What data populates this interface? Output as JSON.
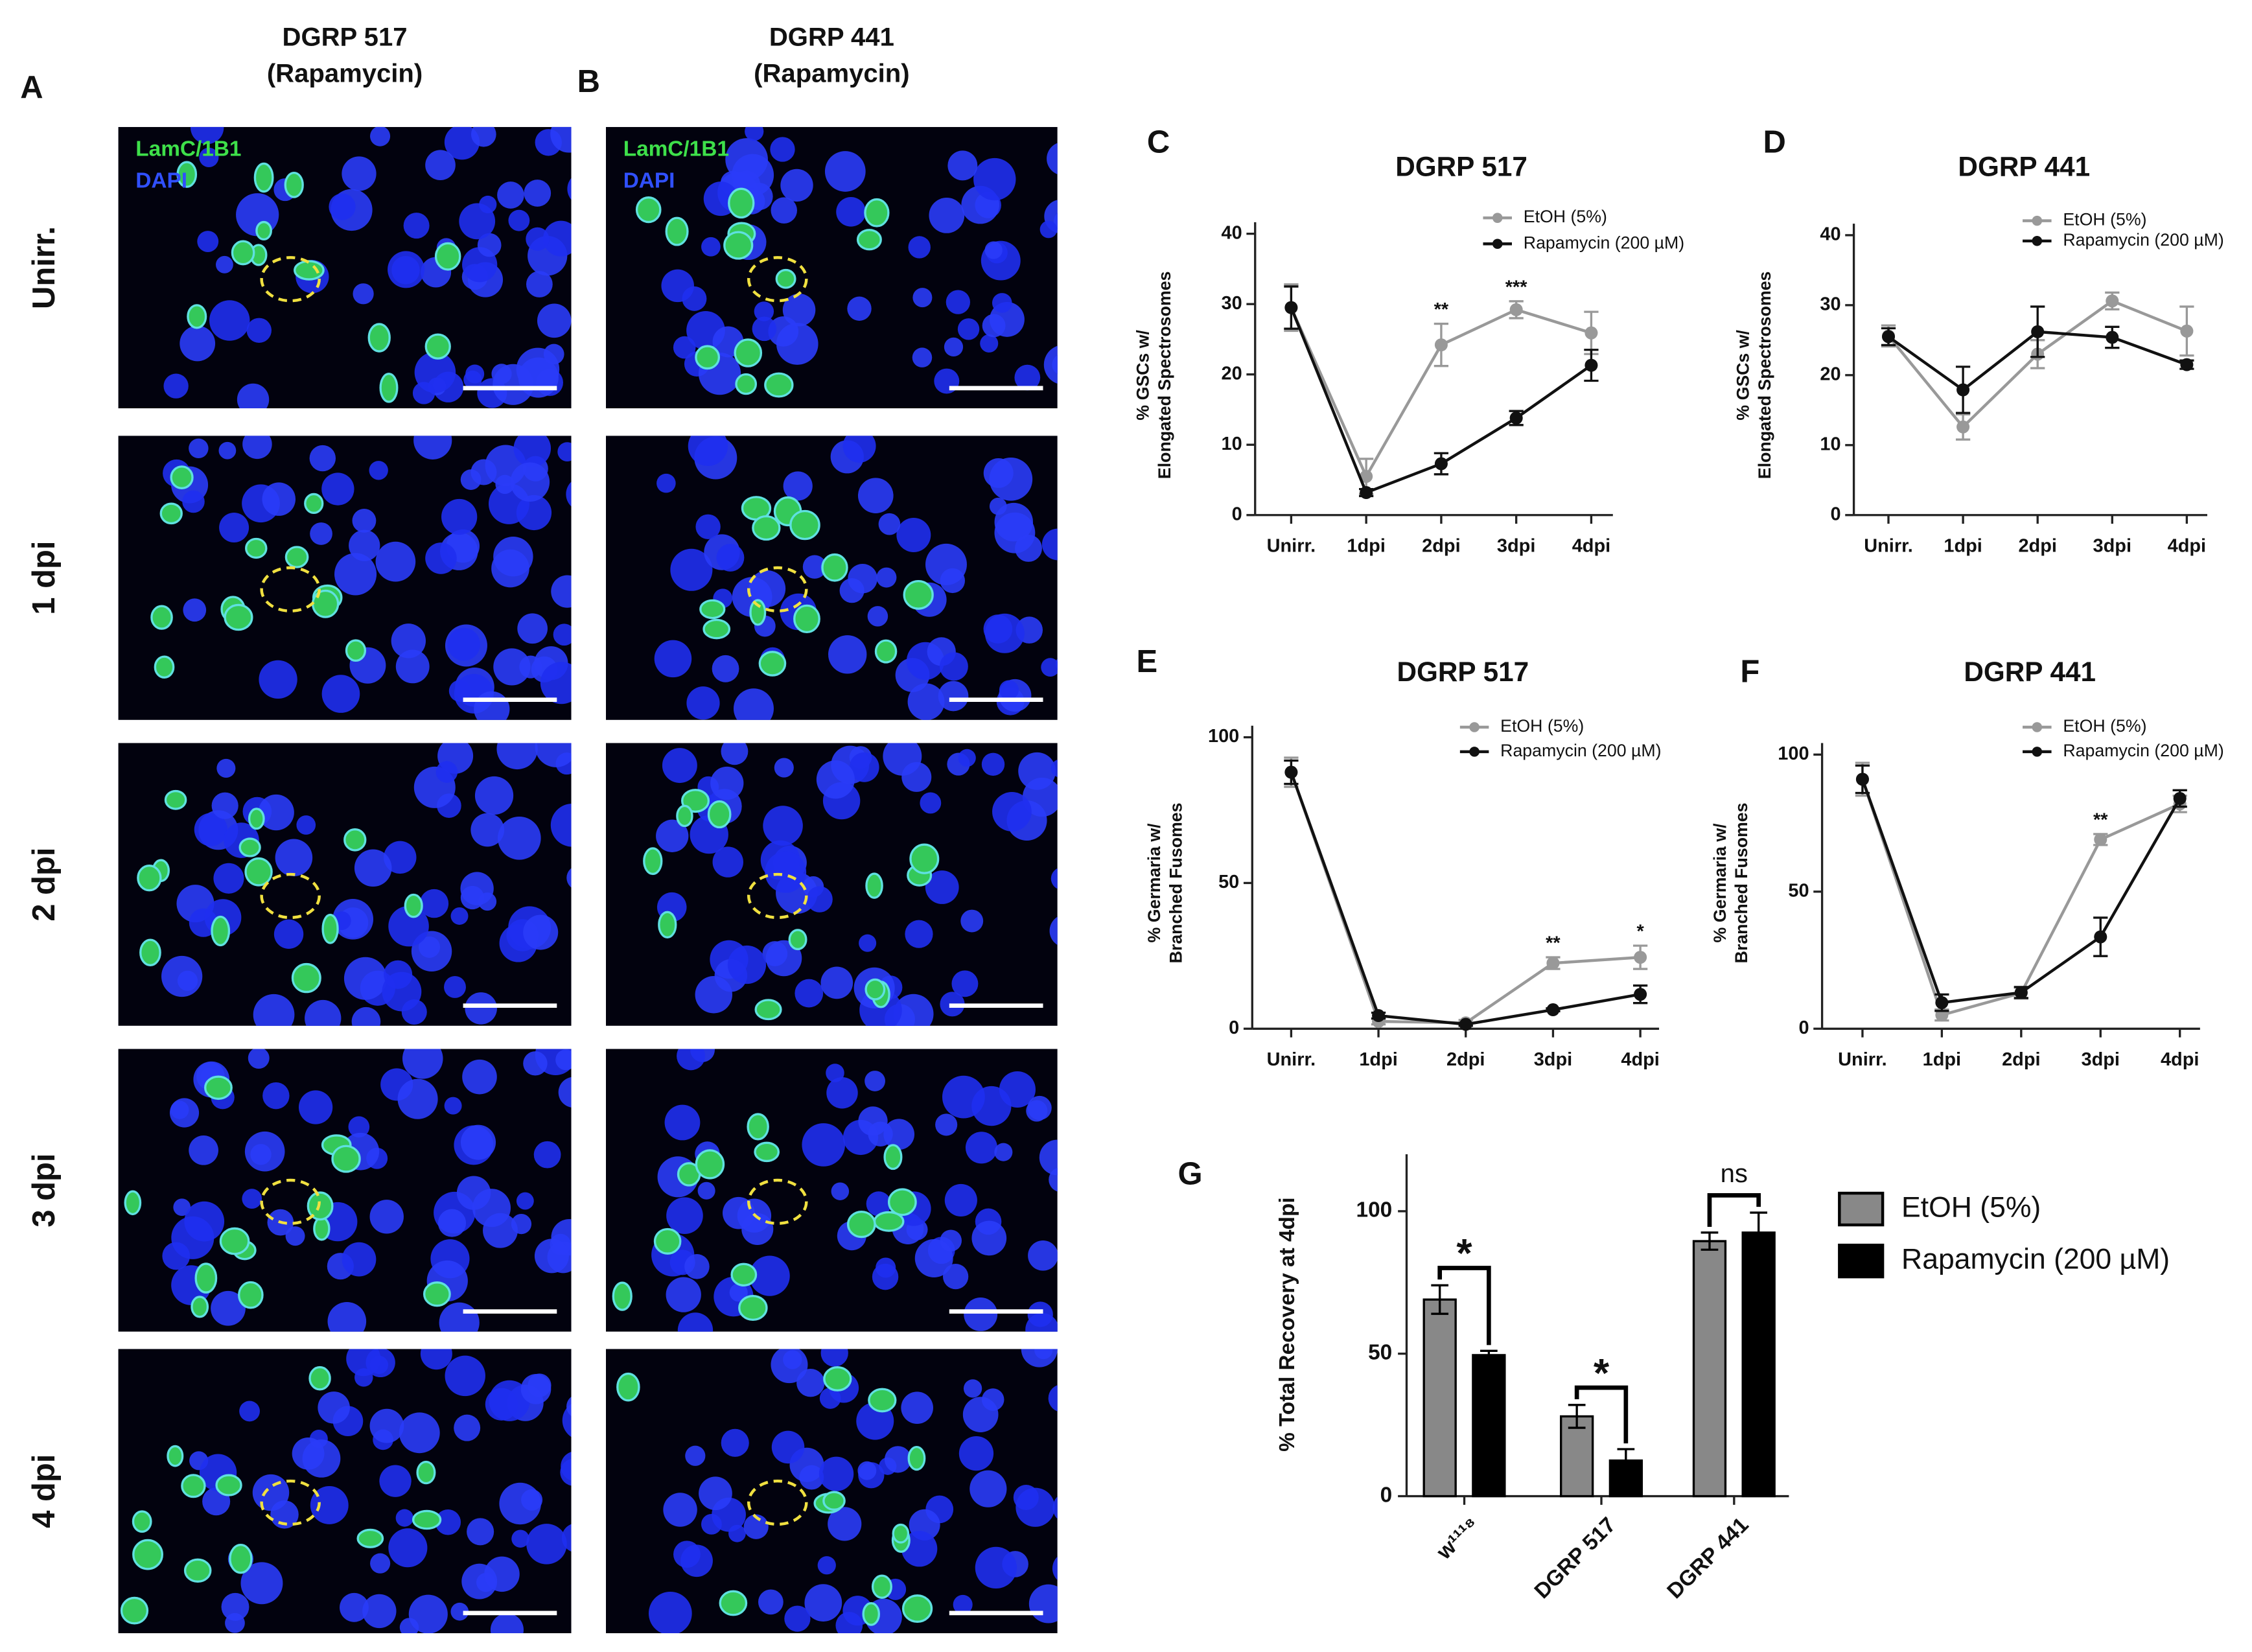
{
  "microscopy": {
    "columns": [
      {
        "label": "A",
        "title": [
          "DGRP 517",
          "(Rapamycin)"
        ]
      },
      {
        "label": "B",
        "title": [
          "DGRP 441",
          "(Rapamycin)"
        ]
      }
    ],
    "rows": [
      "Unirr.",
      "1 dpi",
      "2 dpi",
      "3 dpi",
      "4 dpi"
    ],
    "stains": [
      "LamC/1B1",
      "DAPI"
    ]
  },
  "chart_data": [
    {
      "type": "line",
      "label": "C",
      "title": "DGRP 517",
      "ylabel": [
        "% GSCs w/",
        "Elongated Spectrosomes"
      ],
      "categories": [
        "Unirr.",
        "1dpi",
        "2dpi",
        "3dpi",
        "4dpi"
      ],
      "series": [
        {
          "name": "EtOH (5%)",
          "color": "#999999",
          "values": [
            29.5,
            5.5,
            24.2,
            29.2,
            25.9
          ],
          "errors": [
            3.3,
            2.5,
            3,
            1.2,
            3
          ]
        },
        {
          "name": "Rapamycin (200 µM)",
          "color": "#111111",
          "values": [
            29.5,
            3.2,
            7.3,
            13.8,
            21.3
          ],
          "errors": [
            3,
            0.5,
            1.5,
            1,
            2.2
          ]
        }
      ],
      "significance": [
        null,
        null,
        "**",
        "***",
        null
      ],
      "ylim": [
        0,
        40
      ],
      "yticks": [
        0,
        10,
        20,
        30,
        40
      ]
    },
    {
      "type": "line",
      "label": "D",
      "title": "DGRP 441",
      "ylabel": [
        "% GSCs w/",
        "Elongated Spectrosomes"
      ],
      "categories": [
        "Unirr.",
        "1dpi",
        "2dpi",
        "3dpi",
        "4dpi"
      ],
      "series": [
        {
          "name": "EtOH (5%)",
          "color": "#999999",
          "values": [
            25.6,
            12.6,
            23,
            30.6,
            26.3
          ],
          "errors": [
            1.5,
            1.8,
            2,
            1.2,
            3.5
          ]
        },
        {
          "name": "Rapamycin (200 µM)",
          "color": "#111111",
          "values": [
            25.5,
            17.9,
            26.2,
            25.4,
            21.5
          ],
          "errors": [
            1.2,
            3.3,
            3.6,
            1.5,
            0.6
          ]
        }
      ],
      "significance": [
        null,
        null,
        null,
        null,
        null
      ],
      "ylim": [
        0,
        40
      ],
      "yticks": [
        0,
        10,
        20,
        30,
        40
      ]
    },
    {
      "type": "line",
      "label": "E",
      "title": "DGRP 517",
      "ylabel": [
        "% Germaria w/",
        "Branched Fusomes"
      ],
      "categories": [
        "Unirr.",
        "1dpi",
        "2dpi",
        "3dpi",
        "4dpi"
      ],
      "series": [
        {
          "name": "EtOH (5%)",
          "color": "#999999",
          "values": [
            88,
            2.5,
            2,
            22.5,
            24.5
          ],
          "errors": [
            5,
            1,
            1,
            2,
            4
          ]
        },
        {
          "name": "Rapamycin (200 µM)",
          "color": "#111111",
          "values": [
            88,
            4.5,
            1.5,
            6.5,
            11.8
          ],
          "errors": [
            4,
            1,
            0.5,
            0.5,
            3
          ]
        }
      ],
      "significance": [
        null,
        null,
        null,
        "**",
        "*"
      ],
      "ylim": [
        0,
        100
      ],
      "yticks": [
        0,
        50,
        100
      ]
    },
    {
      "type": "line",
      "label": "F",
      "title": "DGRP 441",
      "ylabel": [
        "% Germaria w/",
        "Branched Fusomes"
      ],
      "categories": [
        "Unirr.",
        "1dpi",
        "2dpi",
        "3dpi",
        "4dpi"
      ],
      "series": [
        {
          "name": "EtOH (5%)",
          "color": "#999999",
          "values": [
            91,
            5,
            13,
            69,
            82
          ],
          "errors": [
            6,
            2,
            2,
            2,
            3
          ]
        },
        {
          "name": "Rapamycin (200 µM)",
          "color": "#111111",
          "values": [
            91,
            9.5,
            13.2,
            33.5,
            84
          ],
          "errors": [
            5,
            3,
            2,
            7,
            3
          ]
        }
      ],
      "significance": [
        null,
        null,
        null,
        "**",
        null
      ],
      "ylim": [
        0,
        100
      ],
      "yticks": [
        0,
        50,
        100
      ]
    },
    {
      "type": "bar",
      "label": "G",
      "ylabel": "% Total Recovery at 4dpi",
      "categories": [
        "w¹¹¹⁸",
        "DGRP 517",
        "DGRP 441"
      ],
      "series": [
        {
          "name": "EtOH (5%)",
          "color": "#888888",
          "values": [
            69,
            28,
            89.5
          ],
          "errors": [
            5,
            4,
            3
          ]
        },
        {
          "name": "Rapamycin (200 µM)",
          "color": "#000000",
          "values": [
            49.5,
            12.5,
            92.5
          ],
          "errors": [
            1.5,
            4,
            7
          ]
        }
      ],
      "significance": [
        "*",
        "*",
        "ns"
      ],
      "ylim": [
        0,
        120
      ],
      "yticks": [
        0,
        50,
        100
      ]
    }
  ]
}
